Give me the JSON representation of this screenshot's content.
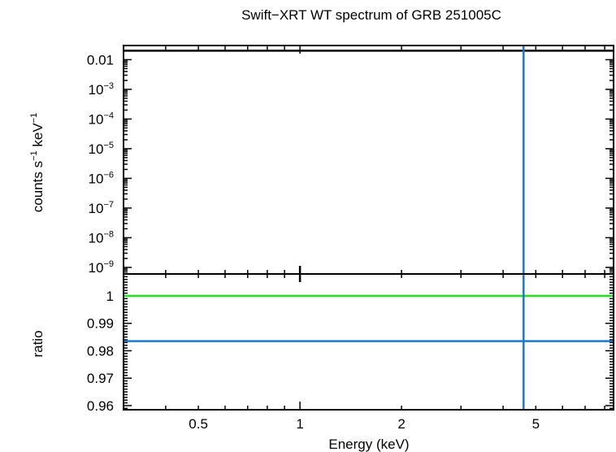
{
  "chart_data": {
    "title": "Swift−XRT WT spectrum of GRB 251005C",
    "xlabel": "Energy (keV)",
    "xscale": "log",
    "xlim": [
      0.3,
      8.5
    ],
    "x_ticklabels": [
      {
        "value": 0.5,
        "label": "0.5"
      },
      {
        "value": 1,
        "label": "1"
      },
      {
        "value": 2,
        "label": "2"
      },
      {
        "value": 5,
        "label": "5"
      }
    ],
    "panels": [
      {
        "type": "line",
        "ylabel_base": "counts s",
        "ylabel_exp1": "−1",
        "ylabel_mid": " keV",
        "ylabel_exp2": "−1",
        "yscale": "log",
        "ylim": [
          6e-10,
          0.03
        ],
        "y_ticklabels": [
          {
            "value": 0.01,
            "label": "0.01",
            "exp": ""
          },
          {
            "value": 0.001,
            "label": "10",
            "exp": "−3"
          },
          {
            "value": 0.0001,
            "label": "10",
            "exp": "−4"
          },
          {
            "value": 1e-05,
            "label": "10",
            "exp": "−5"
          },
          {
            "value": 1e-06,
            "label": "10",
            "exp": "−6"
          },
          {
            "value": 1e-07,
            "label": "10",
            "exp": "−7"
          },
          {
            "value": 1e-08,
            "label": "10",
            "exp": "−8"
          },
          {
            "value": 1e-09,
            "label": "10",
            "exp": "−9"
          }
        ],
        "hlines": [
          {
            "y": 0.02,
            "color": "#000000"
          }
        ],
        "vlines": [
          {
            "x": 4.6,
            "color": "#1a78d2"
          }
        ],
        "markers": [
          {
            "x": 1.0,
            "color": "#000000"
          }
        ]
      },
      {
        "type": "line",
        "ylabel": "ratio",
        "yscale": "linear",
        "ylim": [
          0.9585,
          1.008
        ],
        "y_ticklabels": [
          {
            "value": 1,
            "label": "1"
          },
          {
            "value": 0.99,
            "label": "0.99"
          },
          {
            "value": 0.98,
            "label": "0.98"
          },
          {
            "value": 0.97,
            "label": "0.97"
          },
          {
            "value": 0.96,
            "label": "0.96"
          }
        ],
        "hlines": [
          {
            "y": 1.0,
            "color": "#22e01e"
          },
          {
            "y": 0.9835,
            "color": "#1a78d2"
          }
        ],
        "vlines": [
          {
            "x": 4.6,
            "color": "#1a78d2"
          }
        ]
      }
    ]
  }
}
